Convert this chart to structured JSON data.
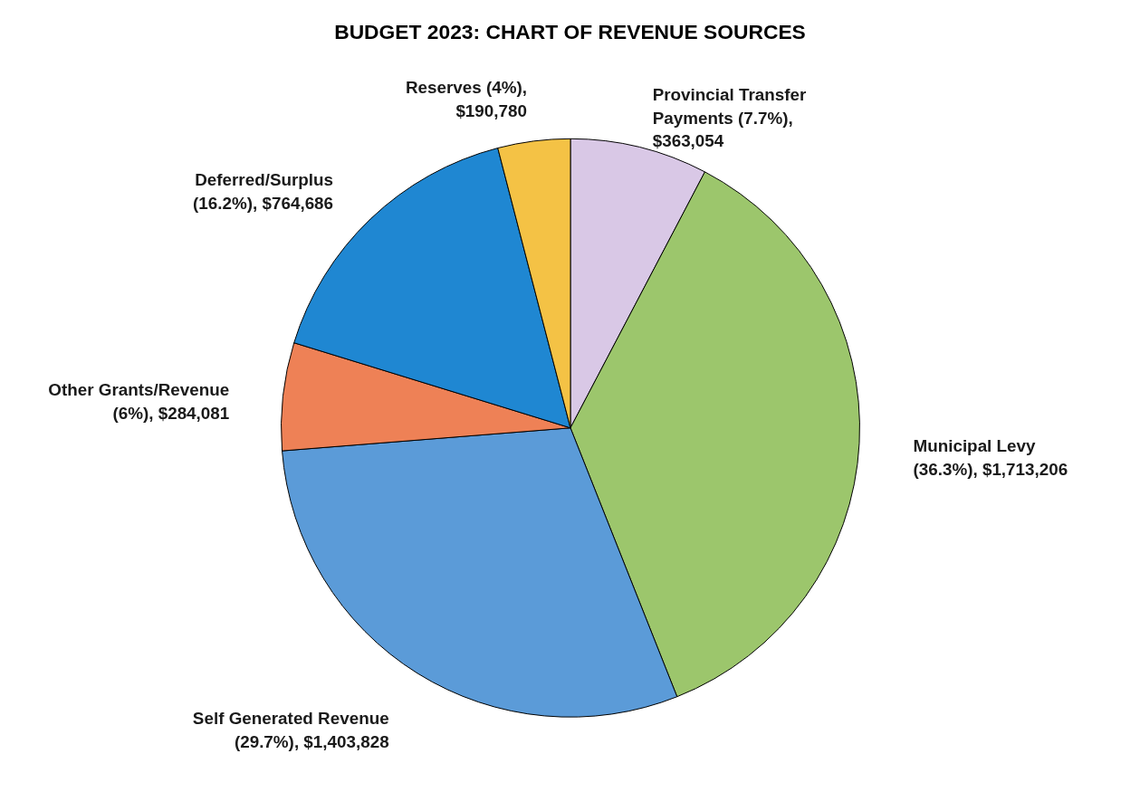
{
  "chart_data": {
    "type": "pie",
    "title": "BUDGET 2023: CHART OF REVENUE SOURCES",
    "categories": [
      "Provincial Transfer Payments",
      "Municipal Levy",
      "Self Generated Revenue",
      "Other Grants/Revenue",
      "Deferred/Surplus",
      "Reserves"
    ],
    "values": [
      363054,
      1713206,
      1403828,
      284081,
      764686,
      190780
    ],
    "value_labels": [
      "(7.7%), $363,054",
      "(36.3%), $1,713,206",
      "(29.7%), $1,403,828",
      "(6%), $284,081",
      "(16.2%), $764,686",
      "(4%), $190,780"
    ],
    "colors": [
      "#d9c8e6",
      "#9cc66c",
      "#5b9bd8",
      "#ee8156",
      "#1f87d2",
      "#f4c245"
    ],
    "legend": false
  }
}
